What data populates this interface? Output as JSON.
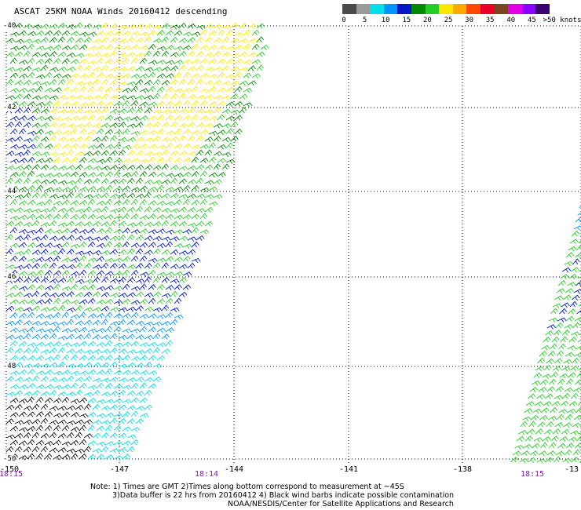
{
  "title": "ASCAT 25KM NOAA Winds 20160412 descending",
  "legend": {
    "colors": [
      "#4b4b4b",
      "#9a9a9a",
      "#00e0e8",
      "#0094ff",
      "#0018c8",
      "#008a00",
      "#26cc26",
      "#ffe800",
      "#ffa800",
      "#ff4a00",
      "#e8002a",
      "#7a4520",
      "#e400e4",
      "#8a00ff",
      "#3a0070"
    ],
    "labels": [
      "0",
      "5",
      "10",
      "15",
      "20",
      "25",
      "30",
      "35",
      "40",
      "45",
      ">50 knots"
    ]
  },
  "lat_labels": [
    "-40",
    "-42",
    "-44",
    "-46",
    "-48",
    "-50"
  ],
  "lon_labels": [
    "-150",
    "-147",
    "-144",
    "-141",
    "-138",
    "-13"
  ],
  "time_labels": [
    "18:15",
    "18:14",
    "18:15"
  ],
  "notes": {
    "line1": "Note: 1) Times are GMT 2)Times along bottom correspond to measurement at ~45S",
    "line2": "3)Data buffer is 22 hrs from 20160412 4) Black wind barbs indicate possible contamination",
    "line3": "NOAA/NESDIS/Center for Satellite Applications and Research"
  },
  "wind_bands": {
    "yellow": "#ffe800",
    "dark_green": "#008a00",
    "light_green": "#26cc26",
    "blue": "#0018c8",
    "med_blue": "#0094ff",
    "cyan": "#00e0e8",
    "black": "#111111"
  }
}
